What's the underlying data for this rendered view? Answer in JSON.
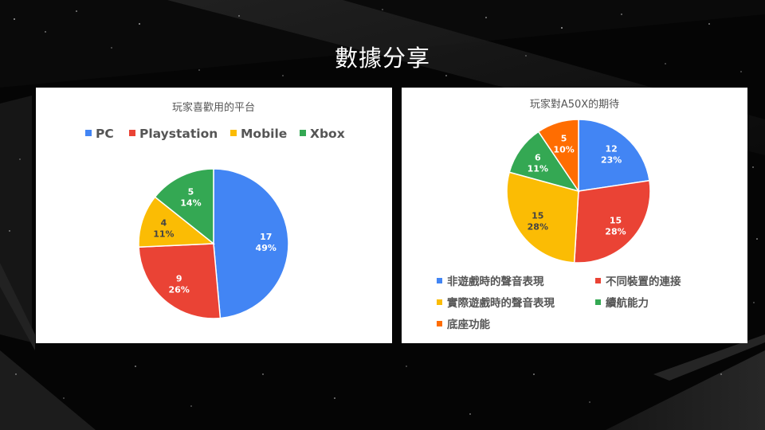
{
  "slide": {
    "title": "數據分享"
  },
  "theme": {
    "background": "#050505",
    "slice_border": "#ffffff",
    "label_color_light": "#ffffff",
    "label_color_dark": "#444444"
  },
  "chart_data": [
    {
      "type": "pie",
      "title": "玩家喜歡用的平台",
      "legend_position": "top",
      "start_angle_deg": 0,
      "slices": [
        {
          "label": "PC",
          "value": 17,
          "percent": "49%",
          "color": "#4285F4"
        },
        {
          "label": "Playstation",
          "value": 9,
          "percent": "26%",
          "color": "#EA4335"
        },
        {
          "label": "Mobile",
          "value": 4,
          "percent": "11%",
          "color": "#FBBC04"
        },
        {
          "label": "Xbox",
          "value": 5,
          "percent": "14%",
          "color": "#34A853"
        }
      ]
    },
    {
      "type": "pie",
      "title": "玩家對A50X的期待",
      "legend_position": "bottom",
      "start_angle_deg": 0,
      "slices": [
        {
          "label": "非遊戲時的聲音表現",
          "value": 12,
          "percent": "23%",
          "color": "#4285F4"
        },
        {
          "label": "不同裝置的連接",
          "value": 15,
          "percent": "28%",
          "color": "#EA4335"
        },
        {
          "label": "實際遊戲時的聲音表現",
          "value": 15,
          "percent": "28%",
          "color": "#FBBC04"
        },
        {
          "label": "續航能力",
          "value": 6,
          "percent": "11%",
          "color": "#34A853"
        },
        {
          "label": "底座功能",
          "value": 5,
          "percent": "10%",
          "color": "#FF6D01"
        }
      ]
    }
  ]
}
